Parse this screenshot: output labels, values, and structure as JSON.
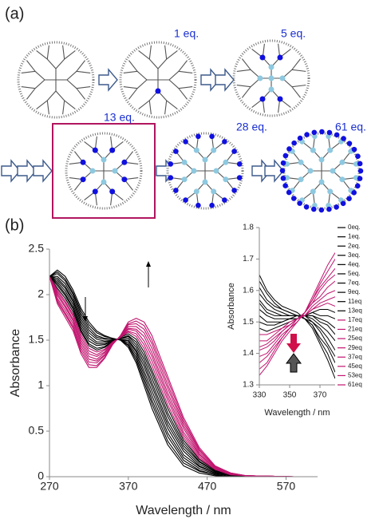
{
  "diagram": {
    "panel_a": "(a)",
    "panel_b": "(b)",
    "labels": [
      "1 eq.",
      "5 eq.",
      "13 eq.",
      "28 eq.",
      "61 eq."
    ]
  },
  "chart_data": [
    {
      "type": "line",
      "xlabel": "Wavelength / nm",
      "ylabel": "Absorbance",
      "x": [
        270,
        280,
        290,
        300,
        310,
        320,
        330,
        340,
        350,
        360,
        370,
        380,
        390,
        400,
        420,
        440,
        460,
        480,
        500,
        520,
        580
      ],
      "xlim": [
        270,
        610
      ],
      "xticks": [
        270,
        370,
        470,
        570
      ],
      "ylim": [
        0,
        2.5
      ],
      "yticks": [
        0,
        0.5,
        1,
        1.5,
        2,
        2.5
      ],
      "series": [
        {
          "color": "#000000",
          "values": [
            2.2,
            2.27,
            2.2,
            2.05,
            1.85,
            1.7,
            1.6,
            1.55,
            1.52,
            1.5,
            1.42,
            1.25,
            1.0,
            0.75,
            0.35,
            0.12,
            0.04,
            0.01,
            0,
            0,
            0
          ]
        },
        {
          "color": "#000000",
          "values": [
            2.2,
            2.25,
            2.17,
            2.02,
            1.82,
            1.67,
            1.58,
            1.54,
            1.52,
            1.5,
            1.44,
            1.28,
            1.04,
            0.8,
            0.39,
            0.15,
            0.06,
            0.02,
            0,
            0,
            0
          ]
        },
        {
          "color": "#000000",
          "values": [
            2.2,
            2.23,
            2.15,
            2.0,
            1.79,
            1.64,
            1.55,
            1.52,
            1.51,
            1.51,
            1.45,
            1.31,
            1.08,
            0.84,
            0.44,
            0.18,
            0.07,
            0.02,
            0,
            0,
            0
          ]
        },
        {
          "color": "#000000",
          "values": [
            2.2,
            2.2,
            2.12,
            1.97,
            1.76,
            1.61,
            1.53,
            1.51,
            1.51,
            1.51,
            1.47,
            1.34,
            1.12,
            0.89,
            0.48,
            0.21,
            0.09,
            0.03,
            0.01,
            0,
            0
          ]
        },
        {
          "color": "#000000",
          "values": [
            2.2,
            2.18,
            2.09,
            1.94,
            1.73,
            1.58,
            1.51,
            1.49,
            1.5,
            1.51,
            1.49,
            1.37,
            1.16,
            0.94,
            0.53,
            0.24,
            0.11,
            0.04,
            0.01,
            0,
            0
          ]
        },
        {
          "color": "#000000",
          "values": [
            2.2,
            2.16,
            2.07,
            1.92,
            1.7,
            1.55,
            1.48,
            1.48,
            1.5,
            1.51,
            1.5,
            1.39,
            1.21,
            0.99,
            0.57,
            0.28,
            0.12,
            0.04,
            0.01,
            0,
            0
          ]
        },
        {
          "color": "#000000",
          "values": [
            2.2,
            2.14,
            2.04,
            1.89,
            1.67,
            1.52,
            1.46,
            1.46,
            1.5,
            1.52,
            1.52,
            1.42,
            1.25,
            1.03,
            0.61,
            0.31,
            0.14,
            0.05,
            0.01,
            0,
            0
          ]
        },
        {
          "color": "#000000",
          "values": [
            2.2,
            2.12,
            2.01,
            1.86,
            1.64,
            1.49,
            1.44,
            1.45,
            1.49,
            1.52,
            1.54,
            1.45,
            1.29,
            1.08,
            0.66,
            0.34,
            0.16,
            0.06,
            0.02,
            0,
            0
          ]
        },
        {
          "color": "#000000",
          "values": [
            2.2,
            2.1,
            1.99,
            1.84,
            1.61,
            1.46,
            1.41,
            1.43,
            1.49,
            1.52,
            1.55,
            1.48,
            1.33,
            1.13,
            0.7,
            0.37,
            0.17,
            0.06,
            0.02,
            0,
            0
          ]
        },
        {
          "color": "#000000",
          "values": [
            2.2,
            2.07,
            1.96,
            1.81,
            1.59,
            1.44,
            1.39,
            1.42,
            1.48,
            1.53,
            1.57,
            1.51,
            1.37,
            1.17,
            0.75,
            0.4,
            0.19,
            0.07,
            0.02,
            0.01,
            0
          ]
        },
        {
          "color": "#c0146e",
          "values": [
            2.2,
            2.05,
            1.93,
            1.78,
            1.56,
            1.41,
            1.37,
            1.4,
            1.48,
            1.53,
            1.59,
            1.54,
            1.41,
            1.22,
            0.79,
            0.43,
            0.2,
            0.08,
            0.02,
            0.01,
            0
          ]
        },
        {
          "color": "#c0146e",
          "values": [
            2.2,
            2.03,
            1.91,
            1.76,
            1.53,
            1.38,
            1.34,
            1.39,
            1.47,
            1.53,
            1.6,
            1.57,
            1.45,
            1.27,
            0.84,
            0.46,
            0.22,
            0.08,
            0.03,
            0.01,
            0
          ]
        },
        {
          "color": "#c0146e",
          "values": [
            2.2,
            2.01,
            1.88,
            1.73,
            1.5,
            1.35,
            1.32,
            1.37,
            1.47,
            1.53,
            1.62,
            1.6,
            1.49,
            1.32,
            0.88,
            0.49,
            0.24,
            0.09,
            0.03,
            0.01,
            0
          ]
        },
        {
          "color": "#c0146e",
          "values": [
            2.2,
            1.99,
            1.86,
            1.71,
            1.47,
            1.32,
            1.29,
            1.36,
            1.47,
            1.54,
            1.63,
            1.62,
            1.54,
            1.36,
            0.92,
            0.53,
            0.25,
            0.09,
            0.03,
            0.01,
            0
          ]
        },
        {
          "color": "#c0146e",
          "values": [
            2.2,
            1.96,
            1.83,
            1.68,
            1.44,
            1.29,
            1.27,
            1.34,
            1.46,
            1.54,
            1.65,
            1.65,
            1.58,
            1.41,
            0.97,
            0.56,
            0.27,
            0.1,
            0.03,
            0.01,
            0
          ]
        },
        {
          "color": "#c0146e",
          "values": [
            2.2,
            1.94,
            1.8,
            1.65,
            1.41,
            1.26,
            1.25,
            1.33,
            1.46,
            1.54,
            1.67,
            1.68,
            1.62,
            1.46,
            1.01,
            0.59,
            0.29,
            0.11,
            0.04,
            0.01,
            0
          ]
        },
        {
          "color": "#c0146e",
          "values": [
            2.2,
            1.92,
            1.78,
            1.63,
            1.38,
            1.23,
            1.22,
            1.31,
            1.45,
            1.55,
            1.68,
            1.71,
            1.66,
            1.5,
            1.06,
            0.62,
            0.3,
            0.11,
            0.04,
            0.01,
            0
          ]
        },
        {
          "color": "#c0146e",
          "values": [
            2.2,
            1.9,
            1.75,
            1.6,
            1.35,
            1.2,
            1.2,
            1.3,
            1.45,
            1.55,
            1.7,
            1.74,
            1.7,
            1.55,
            1.1,
            0.65,
            0.32,
            0.12,
            0.04,
            0.01,
            0
          ]
        }
      ]
    },
    {
      "type": "line",
      "xlabel": "Wavelength / nm",
      "ylabel": "Absorbance",
      "x": [
        330,
        335,
        340,
        345,
        350,
        355,
        360,
        365,
        370,
        375,
        380
      ],
      "xlim": [
        330,
        380
      ],
      "xticks": [
        330,
        350,
        370
      ],
      "ylim": [
        1.3,
        1.8
      ],
      "yticks": [
        1.3,
        1.4,
        1.5,
        1.6,
        1.7,
        1.8
      ],
      "legend": "right",
      "series": [
        {
          "name": "0eq.",
          "color": "#000000",
          "values": [
            1.65,
            1.6,
            1.57,
            1.55,
            1.54,
            1.53,
            1.51,
            1.48,
            1.43,
            1.38,
            1.32
          ]
        },
        {
          "name": "1eq.",
          "color": "#000000",
          "values": [
            1.63,
            1.59,
            1.56,
            1.54,
            1.53,
            1.52,
            1.51,
            1.49,
            1.44,
            1.4,
            1.34
          ]
        },
        {
          "name": "2eq.",
          "color": "#000000",
          "values": [
            1.61,
            1.57,
            1.55,
            1.54,
            1.53,
            1.52,
            1.51,
            1.49,
            1.45,
            1.42,
            1.37
          ]
        },
        {
          "name": "3eq.",
          "color": "#000000",
          "values": [
            1.59,
            1.56,
            1.54,
            1.53,
            1.52,
            1.52,
            1.51,
            1.5,
            1.47,
            1.43,
            1.39
          ]
        },
        {
          "name": "4eq.",
          "color": "#000000",
          "values": [
            1.57,
            1.54,
            1.53,
            1.52,
            1.52,
            1.52,
            1.52,
            1.5,
            1.48,
            1.45,
            1.41
          ]
        },
        {
          "name": "5eq.",
          "color": "#000000",
          "values": [
            1.56,
            1.53,
            1.52,
            1.52,
            1.52,
            1.52,
            1.52,
            1.51,
            1.49,
            1.47,
            1.44
          ]
        },
        {
          "name": "7eq.",
          "color": "#000000",
          "values": [
            1.54,
            1.52,
            1.51,
            1.51,
            1.51,
            1.52,
            1.52,
            1.52,
            1.5,
            1.49,
            1.46
          ]
        },
        {
          "name": "9eq.",
          "color": "#000000",
          "values": [
            1.52,
            1.5,
            1.5,
            1.5,
            1.51,
            1.51,
            1.52,
            1.52,
            1.51,
            1.5,
            1.48
          ]
        },
        {
          "name": "11eq",
          "color": "#000000",
          "values": [
            1.5,
            1.49,
            1.49,
            1.5,
            1.51,
            1.51,
            1.52,
            1.53,
            1.52,
            1.52,
            1.51
          ]
        },
        {
          "name": "13eq",
          "color": "#000000",
          "values": [
            1.48,
            1.47,
            1.48,
            1.49,
            1.5,
            1.51,
            1.52,
            1.53,
            1.54,
            1.54,
            1.53
          ]
        },
        {
          "name": "17eq",
          "color": "#c0146e",
          "values": [
            1.46,
            1.46,
            1.47,
            1.48,
            1.5,
            1.51,
            1.52,
            1.54,
            1.55,
            1.56,
            1.55
          ]
        },
        {
          "name": "21eq",
          "color": "#c0146e",
          "values": [
            1.44,
            1.44,
            1.46,
            1.48,
            1.49,
            1.51,
            1.52,
            1.54,
            1.56,
            1.57,
            1.58
          ]
        },
        {
          "name": "25eq",
          "color": "#c0146e",
          "values": [
            1.42,
            1.43,
            1.45,
            1.47,
            1.49,
            1.51,
            1.52,
            1.55,
            1.57,
            1.59,
            1.6
          ]
        },
        {
          "name": "29eq",
          "color": "#c0146e",
          "values": [
            1.41,
            1.42,
            1.44,
            1.47,
            1.49,
            1.51,
            1.53,
            1.56,
            1.58,
            1.61,
            1.63
          ]
        },
        {
          "name": "37eq",
          "color": "#c0146e",
          "values": [
            1.39,
            1.4,
            1.43,
            1.46,
            1.48,
            1.51,
            1.53,
            1.56,
            1.6,
            1.63,
            1.65
          ]
        },
        {
          "name": "45eq",
          "color": "#c0146e",
          "values": [
            1.37,
            1.39,
            1.42,
            1.45,
            1.48,
            1.5,
            1.53,
            1.57,
            1.61,
            1.64,
            1.67
          ]
        },
        {
          "name": "53eq",
          "color": "#c0146e",
          "values": [
            1.35,
            1.37,
            1.41,
            1.45,
            1.48,
            1.5,
            1.53,
            1.57,
            1.62,
            1.66,
            1.7
          ]
        },
        {
          "name": "61eq",
          "color": "#c0146e",
          "values": [
            1.33,
            1.36,
            1.4,
            1.44,
            1.47,
            1.5,
            1.53,
            1.58,
            1.63,
            1.68,
            1.72
          ]
        }
      ]
    }
  ]
}
